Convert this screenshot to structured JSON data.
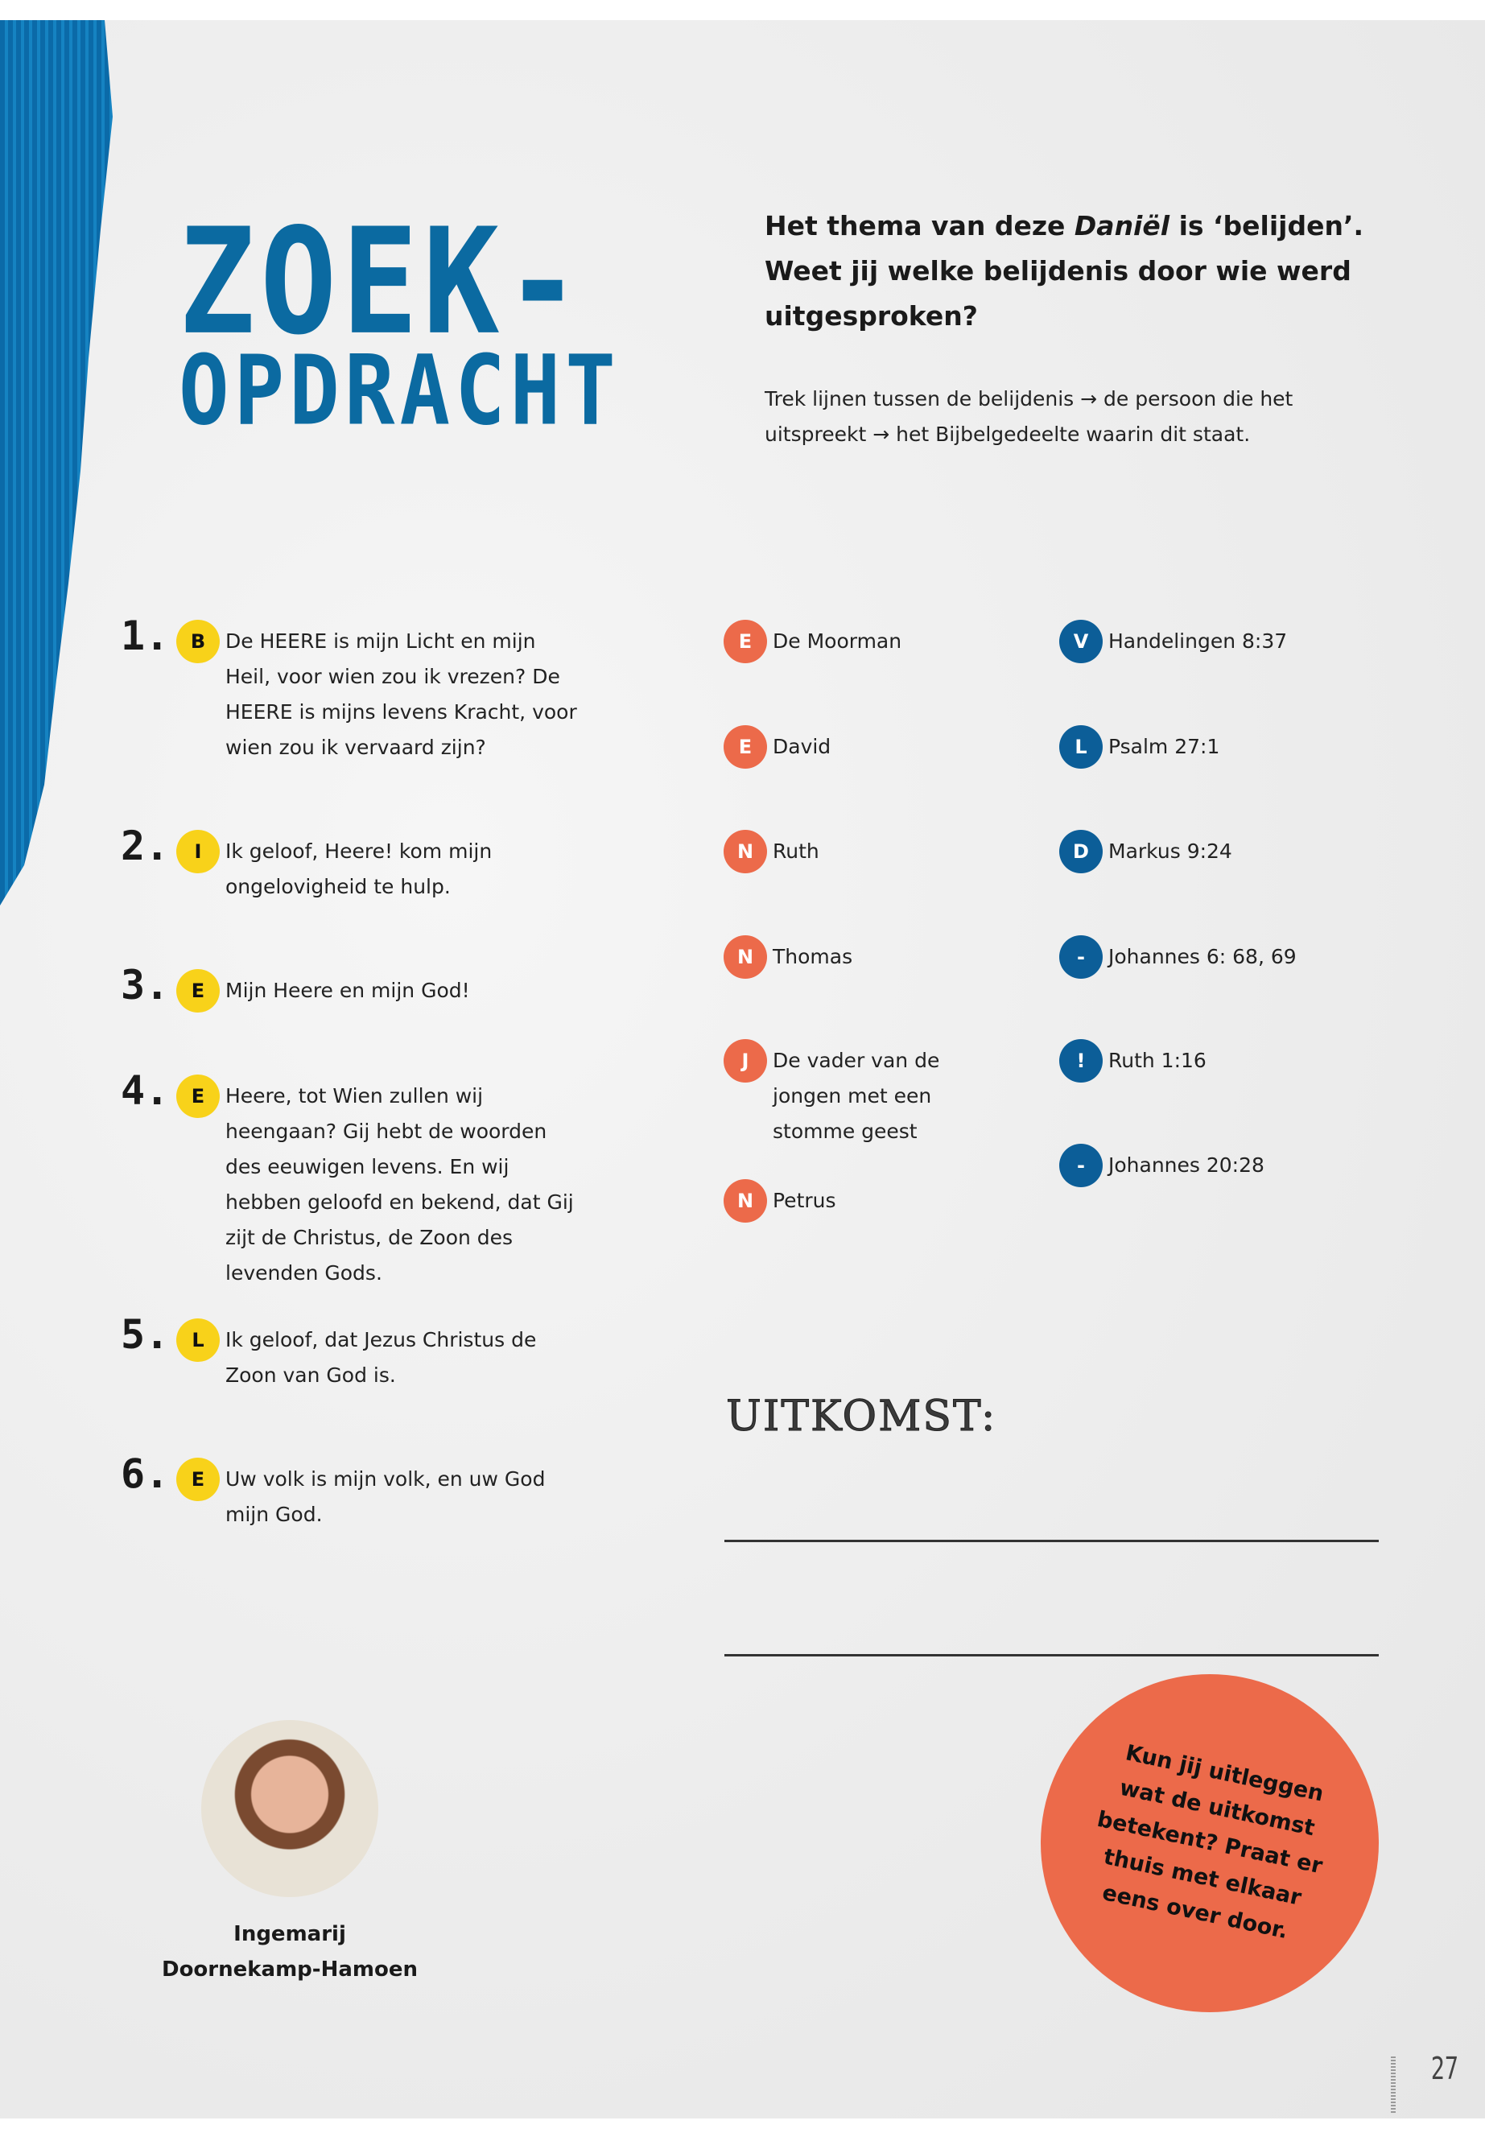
{
  "colors": {
    "blue": "#0b6aa1",
    "yellow": "#f8d21a",
    "orange": "#ec6a4a",
    "dark_blue": "#0c5e98"
  },
  "title": {
    "line1": "ZOEK-",
    "line2": "OPDRACHT"
  },
  "heading": {
    "before": "Het thema van deze ",
    "italic": "Daniël",
    "after": " is ‘belijden’. Weet jij welke belijdenis door wie werd uitgesproken?"
  },
  "instruction": "Trek lijnen tussen de belijdenis → de persoon die het uitspreekt → het Bijbelgedeelte waarin dit staat.",
  "confessions": [
    {
      "number": "1.",
      "letter": "B",
      "text": "De HEERE is mijn Licht en mijn Heil, voor wien zou ik vrezen? De HEERE is mijns levens Kracht, voor wien zou ik vervaard zijn?"
    },
    {
      "number": "2.",
      "letter": "I",
      "text": "Ik geloof, Heere! kom mijn ongelovigheid te hulp."
    },
    {
      "number": "3.",
      "letter": "E",
      "text": "Mijn Heere en mijn God!"
    },
    {
      "number": "4.",
      "letter": "E",
      "text": "Heere, tot Wien zullen wij heengaan? Gij hebt de woorden des eeuwigen levens. En wij hebben geloofd en bekend, dat Gij zijt de Christus, de Zoon des levenden Gods."
    },
    {
      "number": "5.",
      "letter": "L",
      "text": "Ik geloof, dat Jezus Christus de Zoon van God is."
    },
    {
      "number": "6.",
      "letter": "E",
      "text": "Uw volk is mijn volk, en uw God mijn God."
    }
  ],
  "persons": [
    {
      "letter": "E",
      "text": "De Moorman"
    },
    {
      "letter": "E",
      "text": "David"
    },
    {
      "letter": "N",
      "text": "Ruth"
    },
    {
      "letter": "N",
      "text": "Thomas"
    },
    {
      "letter": "J",
      "text": "De vader van de jongen met een stomme geest"
    },
    {
      "letter": "N",
      "text": "Petrus"
    }
  ],
  "passages": [
    {
      "letter": "V",
      "text": "Handelingen 8:37"
    },
    {
      "letter": "L",
      "text": "Psalm 27:1"
    },
    {
      "letter": "D",
      "text": "Markus 9:24"
    },
    {
      "letter": "-",
      "text": "Johannes 6: 68, 69"
    },
    {
      "letter": "!",
      "text": "Ruth 1:16"
    },
    {
      "letter": "-",
      "text": "Johannes 20:28"
    }
  ],
  "result_label": "UITKOMST:",
  "callout": "Kun jij uitleggen wat de uitkomst betekent? Praat er thuis met elkaar eens over door.",
  "author": {
    "line1": "Ingemarij",
    "line2": "Doornekamp-Hamoen"
  },
  "page_number": "27"
}
